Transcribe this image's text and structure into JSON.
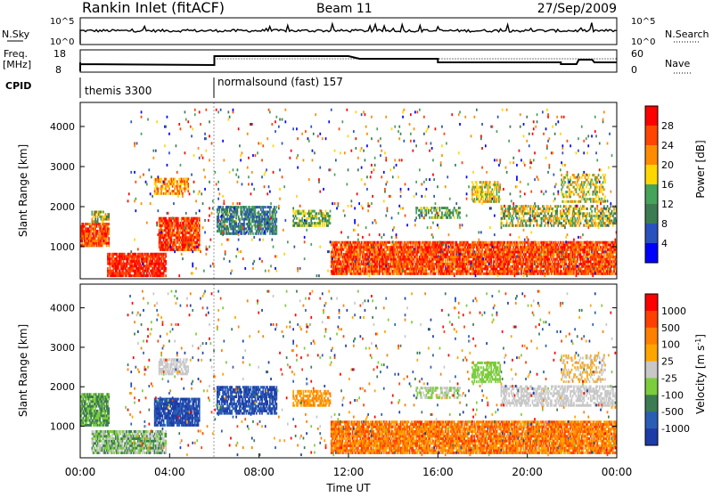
{
  "header": {
    "station": "Rankin Inlet (fitACF)",
    "beam": "Beam 11",
    "date": "27/Sep/2009"
  },
  "noise_panel": {
    "left_label": "N.Sky",
    "right_label": "N.Search",
    "left_ticks": [
      "10^5",
      "10^0"
    ],
    "right_ticks": [
      "10^5",
      "10^0"
    ]
  },
  "freq_panel": {
    "left_label_1": "Freq.",
    "left_label_2": "[MHz]",
    "right_label": "Nave",
    "left_ticks": [
      "18",
      "8"
    ],
    "right_ticks": [
      "60",
      "0"
    ]
  },
  "cpid": {
    "label": "CPID",
    "segments": [
      {
        "name": "themis 3300",
        "start_hour": 0
      },
      {
        "name": "normalsound (fast) 157",
        "start_hour": 6
      }
    ]
  },
  "chart_data": [
    {
      "type": "heatmap",
      "name": "power",
      "ylabel": "Slant Range [km]",
      "yticks": [
        1000,
        2000,
        3000,
        4000
      ],
      "ylim": [
        200,
        4600
      ],
      "xlim": [
        0,
        24
      ],
      "colorbar": {
        "label": "Power [dB]",
        "ticks": [
          "4",
          "8",
          "12",
          "16",
          "20",
          "24",
          "28"
        ],
        "colors": [
          "#0000ff",
          "#2a52be",
          "#3d7c52",
          "#46a35a",
          "#ffd700",
          "#ff8c00",
          "#ff4500",
          "#ff0000"
        ]
      }
    },
    {
      "type": "heatmap",
      "name": "velocity",
      "ylabel": "Slant Range [km]",
      "yticks": [
        1000,
        2000,
        3000,
        4000
      ],
      "ylim": [
        200,
        4600
      ],
      "xlim": [
        0,
        24
      ],
      "xlabel": "Time UT",
      "xticks": [
        "00:00",
        "04:00",
        "08:00",
        "12:00",
        "16:00",
        "20:00",
        "00:00"
      ],
      "colorbar": {
        "label": "Velocity [m s",
        "label_sup": "-1",
        "label_end": "]",
        "ticks": [
          "1000",
          "500",
          "100",
          "25",
          "-25",
          "-100",
          "-500",
          "-1000"
        ],
        "colors": [
          "#1e3ca8",
          "#2a5eb4",
          "#3d7c52",
          "#7ccd3c",
          "#c8c8c8",
          "#ffa500",
          "#ff7f00",
          "#ff4000",
          "#ff0000"
        ]
      }
    }
  ]
}
